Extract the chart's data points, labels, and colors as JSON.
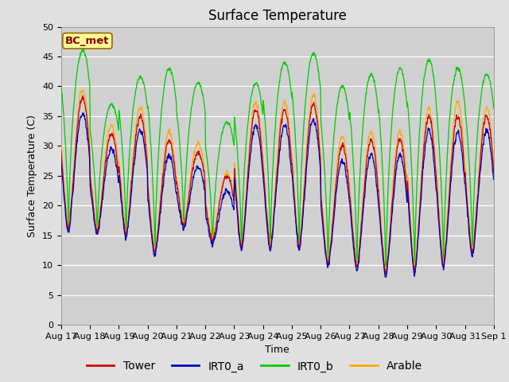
{
  "title": "Surface Temperature",
  "ylabel": "Surface Temperature (C)",
  "xlabel": "Time",
  "annotation": "BC_met",
  "ylim": [
    0,
    50
  ],
  "x_tick_labels": [
    "Aug 17",
    "Aug 18",
    "Aug 19",
    "Aug 20",
    "Aug 21",
    "Aug 22",
    "Aug 23",
    "Aug 24",
    "Aug 25",
    "Aug 26",
    "Aug 27",
    "Aug 28",
    "Aug 29",
    "Aug 30",
    "Aug 31",
    "Sep 1"
  ],
  "legend_entries": [
    "Tower",
    "IRT0_a",
    "IRT0_b",
    "Arable"
  ],
  "line_colors": [
    "#cc0000",
    "#0000bb",
    "#00cc00",
    "#ffaa00"
  ],
  "background_color": "#e0e0e0",
  "plot_bg_color": "#d0d0d0",
  "grid_color": "#ffffff",
  "title_fontsize": 12,
  "label_fontsize": 9,
  "tick_fontsize": 8,
  "legend_fontsize": 10
}
